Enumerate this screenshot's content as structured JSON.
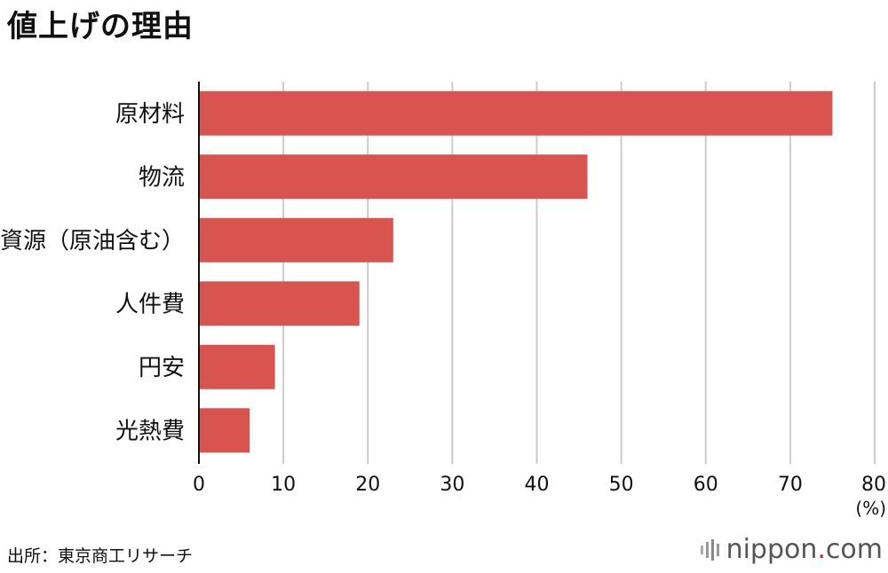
{
  "chart_data": {
    "type": "bar",
    "orientation": "horizontal",
    "title": "値上げの理由",
    "categories": [
      "原材料",
      "物流",
      "資源（原油含む）",
      "人件費",
      "円安",
      "光熱費"
    ],
    "values": [
      75,
      46,
      23,
      19,
      9,
      6
    ],
    "xlim": [
      0,
      80
    ],
    "xticks": [
      0,
      10,
      20,
      30,
      40,
      50,
      60,
      70,
      80
    ],
    "xunit": "(%)",
    "grid": true,
    "legend": "none",
    "bar_color": "#d9534f",
    "grid_color": "#cccccc"
  },
  "source": "出所：東京商工リサーチ",
  "logo": {
    "name": "nippon",
    "dot": ".",
    "tld": "com",
    "icon": "nippon-logo-bars-icon",
    "dot_color": "#d8282f"
  }
}
